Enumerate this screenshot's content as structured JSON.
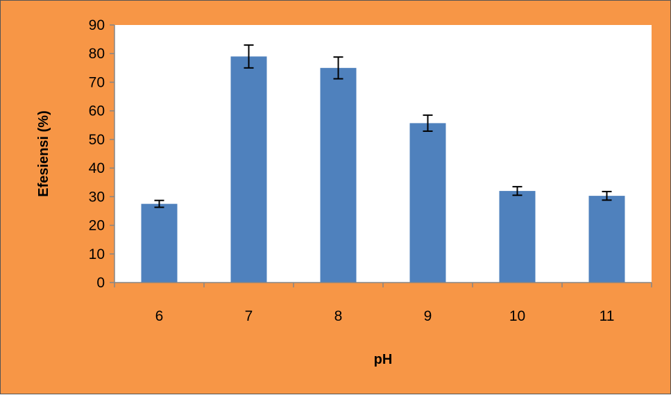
{
  "chart_data": {
    "type": "bar",
    "title": "",
    "xlabel": "pH",
    "ylabel": "Efesiensi (%)",
    "categories": [
      "6",
      "7",
      "8",
      "9",
      "10",
      "11"
    ],
    "series": [
      {
        "values": [
          27.5,
          79,
          75,
          55.7,
          32,
          30.3
        ],
        "error": [
          1.2,
          4,
          3.8,
          2.8,
          1.5,
          1.5
        ]
      }
    ],
    "ylim": [
      0,
      90
    ],
    "yticks": [
      "0",
      "10",
      "20",
      "30",
      "40",
      "50",
      "60",
      "70",
      "80",
      "90"
    ],
    "grid": false,
    "legend": "none",
    "colors": {
      "bar": "#4f81bd",
      "background": "#f79646",
      "plot_area": "#ffffff",
      "axis": "#868686",
      "error_bar": "#000000"
    }
  }
}
